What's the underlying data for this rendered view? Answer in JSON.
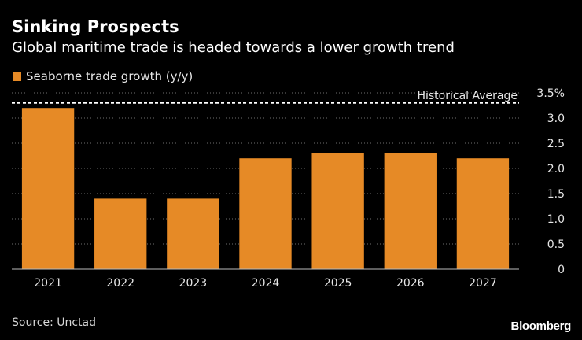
{
  "header": {
    "title": "Sinking Prospects",
    "subtitle": "Global maritime trade is headed towards a lower growth trend"
  },
  "footer": {
    "source": "Source: Unctad",
    "brand": "Bloomberg"
  },
  "colors": {
    "bar": "#e68a26",
    "background": "#000000",
    "text": "#ffffff",
    "grid": "#6e6e6e",
    "reference_line": "#ffffff"
  },
  "chart_data": {
    "type": "bar",
    "title": "Sinking Prospects",
    "subtitle": "Global maritime trade is headed towards a lower growth trend",
    "categories": [
      "2021",
      "2022",
      "2023",
      "2024",
      "2025",
      "2026",
      "2027"
    ],
    "series": [
      {
        "name": "Seaborne trade growth (y/y)",
        "values": [
          3.2,
          1.4,
          1.4,
          2.2,
          2.3,
          2.3,
          2.2
        ]
      }
    ],
    "ylim": [
      0,
      3.5
    ],
    "yticks": [
      0,
      0.5,
      1.0,
      1.5,
      2.0,
      2.5,
      3.0,
      3.5
    ],
    "ytick_labels": [
      "0",
      "0.5",
      "1.0",
      "1.5",
      "2.0",
      "2.5",
      "3.0",
      "3.5%"
    ],
    "y_axis_side": "right",
    "grid": "horizontal dotted",
    "legend_position": "top-left",
    "reference_line": {
      "label": "Historical Average",
      "value": 3.3,
      "style": "dashed"
    },
    "xlabel": "",
    "ylabel": ""
  }
}
